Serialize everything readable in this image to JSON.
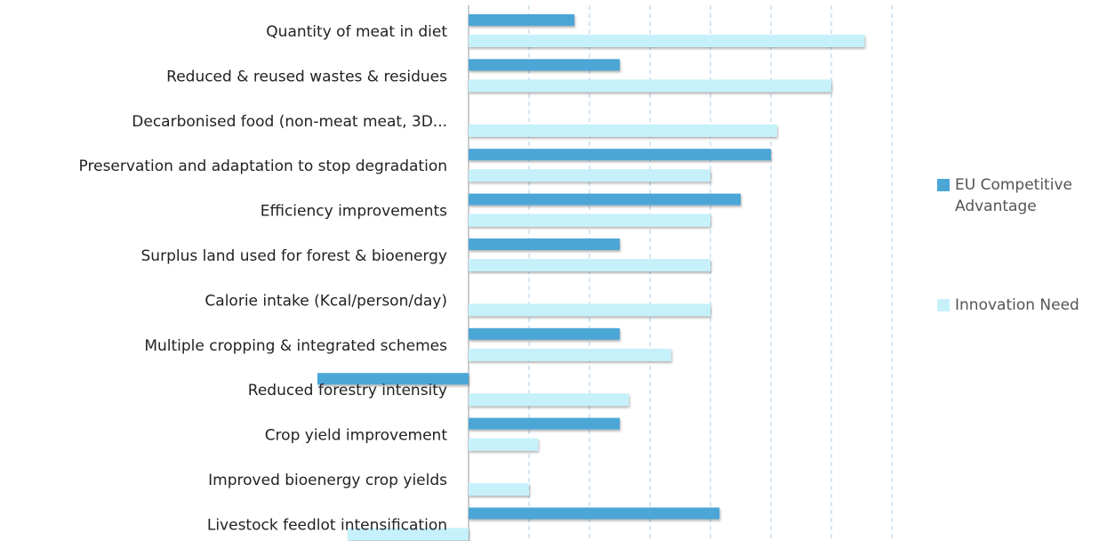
{
  "chart_data": {
    "type": "hbar",
    "categories": [
      "Quantity of meat in diet",
      "Reduced & reused wastes & residues",
      "Decarbonised food (non-meat meat, 3D...",
      "Preservation and adaptation to stop degradation",
      "Efficiency improvements",
      "Surplus land used for forest & bioenergy",
      "Calorie intake (Kcal/person/day)",
      "Multiple cropping & integrated schemes",
      "Reduced forestry intensity",
      "Crop yield improvement",
      "Improved bioenergy crop yields",
      "Livestock feedlot intensification"
    ],
    "series": [
      {
        "name": "EU Competitive Advantage",
        "color": "#4ba6d6",
        "values": [
          1.75,
          2.5,
          0,
          5,
          4.5,
          2.5,
          0,
          2.5,
          -2.5,
          2.5,
          0,
          4.15
        ]
      },
      {
        "name": "Innovation Need",
        "color": "#c6f1fb",
        "values": [
          6.55,
          6,
          5.1,
          4,
          4,
          4,
          4,
          3.35,
          2.65,
          1.15,
          1,
          -2
        ]
      }
    ],
    "xlim": [
      -3,
      7
    ],
    "xticks": [
      0,
      1,
      2,
      3,
      4,
      5,
      6,
      7
    ],
    "grid": true,
    "legend": "right"
  }
}
